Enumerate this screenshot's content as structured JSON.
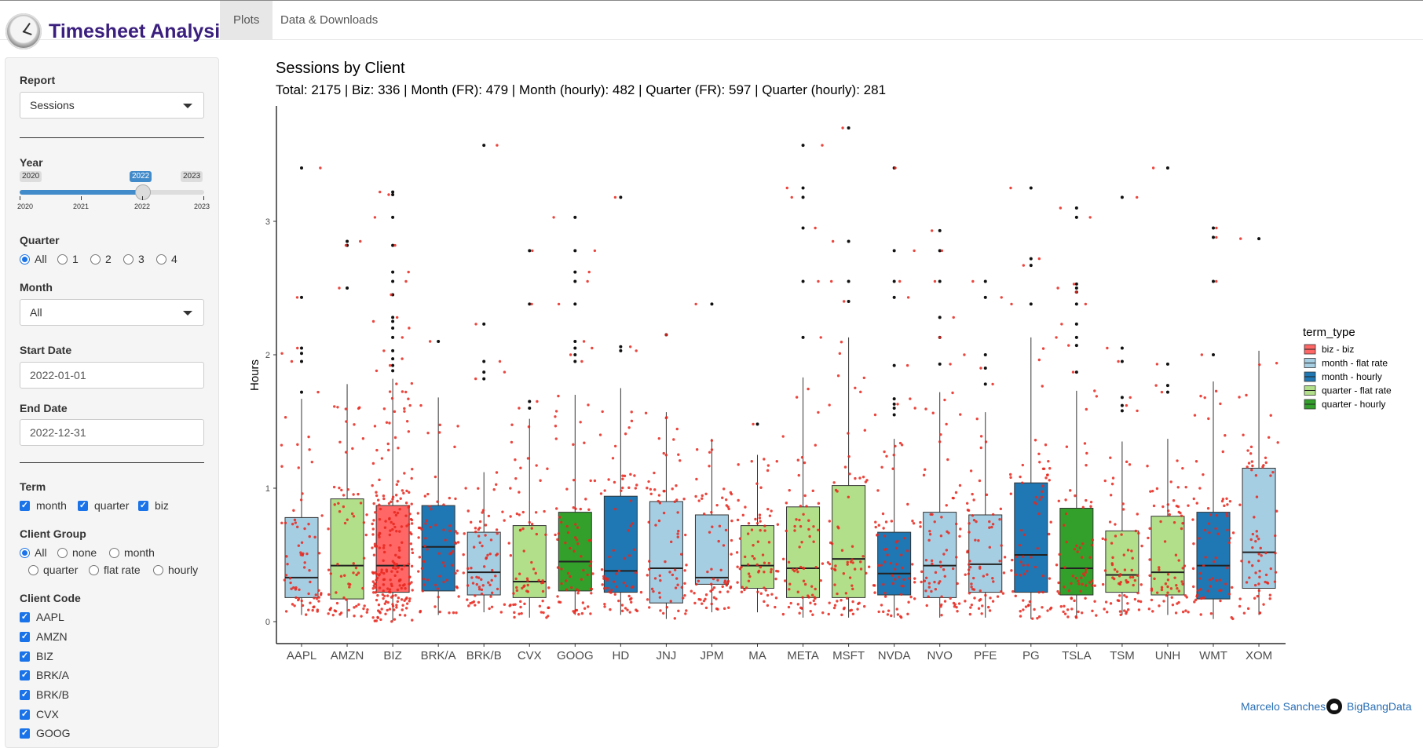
{
  "app": {
    "title": "Timesheet Analysis",
    "tabs": [
      {
        "label": "Plots",
        "active": true
      },
      {
        "label": "Data & Downloads",
        "active": false
      }
    ]
  },
  "sidebar": {
    "report": {
      "label": "Report",
      "value": "Sessions"
    },
    "year": {
      "label": "Year",
      "min": "2020",
      "max": "2023",
      "value": "2022",
      "value_fraction": 0.6667,
      "ticks": [
        "2020",
        "2021",
        "2022",
        "2023"
      ]
    },
    "quarter": {
      "label": "Quarter",
      "options": [
        "All",
        "1",
        "2",
        "3",
        "4"
      ],
      "selected": "All"
    },
    "month": {
      "label": "Month",
      "value": "All"
    },
    "start_date": {
      "label": "Start Date",
      "value": "2022-01-01"
    },
    "end_date": {
      "label": "End Date",
      "value": "2022-12-31"
    },
    "term": {
      "label": "Term",
      "options": [
        {
          "label": "month",
          "checked": true
        },
        {
          "label": "quarter",
          "checked": true
        },
        {
          "label": "biz",
          "checked": true
        }
      ]
    },
    "client_group": {
      "label": "Client Group",
      "options": [
        "All",
        "none",
        "month",
        "quarter",
        "flat rate",
        "hourly"
      ],
      "selected": "All"
    },
    "client_code": {
      "label": "Client Code",
      "options": [
        {
          "label": "AAPL",
          "checked": true
        },
        {
          "label": "AMZN",
          "checked": true
        },
        {
          "label": "BIZ",
          "checked": true
        },
        {
          "label": "BRK/A",
          "checked": true
        },
        {
          "label": "BRK/B",
          "checked": true
        },
        {
          "label": "CVX",
          "checked": true
        },
        {
          "label": "GOOG",
          "checked": true
        }
      ]
    }
  },
  "chart": {
    "title": "Sessions by Client",
    "subtitle": "Total: 2175 | Biz: 336 | Month (FR): 479 | Month (hourly): 482 | Quarter (FR): 597 | Quarter (hourly): 281"
  },
  "footer": {
    "author": "Marcelo Sanches",
    "org": "BigBangData"
  },
  "chart_data": {
    "type": "box",
    "title": "",
    "xlabel": "",
    "ylabel": "Hours",
    "ylim": [
      0,
      3.75
    ],
    "yticks": [
      0,
      1,
      2,
      3
    ],
    "legend": {
      "title": "term_type",
      "position": "right"
    },
    "legend_items": [
      {
        "name": "biz - biz",
        "color": "#ff6666"
      },
      {
        "name": "month - flat rate",
        "color": "#a6cee3"
      },
      {
        "name": "month - hourly",
        "color": "#1f78b4"
      },
      {
        "name": "quarter - flat rate",
        "color": "#b2df8a"
      },
      {
        "name": "quarter - hourly",
        "color": "#33a02c"
      }
    ],
    "jitter_color": "#e8261c",
    "categories": [
      "AAPL",
      "AMZN",
      "BIZ",
      "BRK/A",
      "BRK/B",
      "CVX",
      "GOOG",
      "HD",
      "JNJ",
      "JPM",
      "MA",
      "META",
      "MSFT",
      "NVDA",
      "NVO",
      "PFE",
      "PG",
      "TSLA",
      "TSM",
      "UNH",
      "WMT",
      "XOM"
    ],
    "boxes": [
      {
        "client": "AAPL",
        "term_type": "month - flat rate",
        "q1": 0.18,
        "median": 0.33,
        "q3": 0.78,
        "whisker_low": 0.05,
        "whisker_high": 1.67,
        "outliers": [
          1.72,
          1.95,
          2.01,
          2.05,
          2.43,
          3.4
        ]
      },
      {
        "client": "AMZN",
        "term_type": "quarter - flat rate",
        "q1": 0.17,
        "median": 0.42,
        "q3": 0.92,
        "whisker_low": 0.03,
        "whisker_high": 1.78,
        "outliers": [
          2.5,
          2.82,
          2.85
        ]
      },
      {
        "client": "BIZ",
        "term_type": "biz - biz",
        "q1": 0.22,
        "median": 0.42,
        "q3": 0.87,
        "whisker_low": 0.0,
        "whisker_high": 1.82,
        "outliers": [
          1.88,
          1.92,
          1.97,
          2.03,
          2.13,
          2.2,
          2.25,
          2.28,
          2.45,
          2.55,
          2.62,
          2.82,
          3.03,
          3.2,
          3.22
        ]
      },
      {
        "client": "BRK/A",
        "term_type": "month - hourly",
        "q1": 0.23,
        "median": 0.56,
        "q3": 0.87,
        "whisker_low": 0.05,
        "whisker_high": 1.68,
        "outliers": [
          2.1
        ]
      },
      {
        "client": "BRK/B",
        "term_type": "month - flat rate",
        "q1": 0.2,
        "median": 0.37,
        "q3": 0.67,
        "whisker_low": 0.07,
        "whisker_high": 1.12,
        "outliers": [
          1.82,
          1.87,
          1.95,
          2.23,
          3.57
        ]
      },
      {
        "client": "CVX",
        "term_type": "quarter - flat rate",
        "q1": 0.18,
        "median": 0.3,
        "q3": 0.72,
        "whisker_low": 0.03,
        "whisker_high": 1.52,
        "outliers": [
          1.6,
          1.65,
          2.38,
          2.78
        ]
      },
      {
        "client": "GOOG",
        "term_type": "quarter - hourly",
        "q1": 0.23,
        "median": 0.45,
        "q3": 0.82,
        "whisker_low": 0.05,
        "whisker_high": 1.7,
        "outliers": [
          1.95,
          2.0,
          2.05,
          2.1,
          2.38,
          2.55,
          2.62,
          2.78,
          3.03
        ]
      },
      {
        "client": "HD",
        "term_type": "month - hourly",
        "q1": 0.22,
        "median": 0.38,
        "q3": 0.94,
        "whisker_low": 0.05,
        "whisker_high": 1.75,
        "outliers": [
          2.03,
          2.06,
          3.18
        ]
      },
      {
        "client": "JNJ",
        "term_type": "month - flat rate",
        "q1": 0.14,
        "median": 0.4,
        "q3": 0.9,
        "whisker_low": 0.02,
        "whisker_high": 1.57,
        "outliers": [
          2.15
        ]
      },
      {
        "client": "JPM",
        "term_type": "month - flat rate",
        "q1": 0.28,
        "median": 0.33,
        "q3": 0.8,
        "whisker_low": 0.07,
        "whisker_high": 1.37,
        "outliers": [
          2.38
        ]
      },
      {
        "client": "MA",
        "term_type": "quarter - flat rate",
        "q1": 0.25,
        "median": 0.42,
        "q3": 0.72,
        "whisker_low": 0.07,
        "whisker_high": 1.25,
        "outliers": [
          1.48
        ]
      },
      {
        "client": "META",
        "term_type": "quarter - flat rate",
        "q1": 0.18,
        "median": 0.4,
        "q3": 0.86,
        "whisker_low": 0.03,
        "whisker_high": 1.83,
        "outliers": [
          2.13,
          2.55,
          2.95,
          3.18,
          3.25,
          3.57
        ]
      },
      {
        "client": "MSFT",
        "term_type": "quarter - flat rate",
        "q1": 0.18,
        "median": 0.47,
        "q3": 1.02,
        "whisker_low": 0.03,
        "whisker_high": 2.13,
        "outliers": [
          2.4,
          2.55,
          2.85,
          3.7
        ]
      },
      {
        "client": "NVDA",
        "term_type": "month - hourly",
        "q1": 0.2,
        "median": 0.36,
        "q3": 0.67,
        "whisker_low": 0.03,
        "whisker_high": 1.37,
        "outliers": [
          1.55,
          1.6,
          1.63,
          1.67,
          1.92,
          2.43,
          2.55,
          2.78,
          3.4
        ]
      },
      {
        "client": "NVO",
        "term_type": "month - flat rate",
        "q1": 0.18,
        "median": 0.42,
        "q3": 0.82,
        "whisker_low": 0.03,
        "whisker_high": 1.72,
        "outliers": [
          1.93,
          2.13,
          2.28,
          2.55,
          2.78,
          2.93
        ]
      },
      {
        "client": "PFE",
        "term_type": "month - flat rate",
        "q1": 0.22,
        "median": 0.43,
        "q3": 0.8,
        "whisker_low": 0.03,
        "whisker_high": 1.57,
        "outliers": [
          1.78,
          1.9,
          2.0,
          2.43,
          2.55
        ]
      },
      {
        "client": "PG",
        "term_type": "month - hourly",
        "q1": 0.22,
        "median": 0.5,
        "q3": 1.04,
        "whisker_low": 0.02,
        "whisker_high": 2.13,
        "outliers": [
          2.38,
          2.67,
          2.72,
          3.25
        ]
      },
      {
        "client": "TSLA",
        "term_type": "quarter - hourly",
        "q1": 0.2,
        "median": 0.4,
        "q3": 0.85,
        "whisker_low": 0.03,
        "whisker_high": 1.73,
        "outliers": [
          1.87,
          2.07,
          2.13,
          2.23,
          2.38,
          2.47,
          2.5,
          2.53,
          3.03,
          3.1
        ]
      },
      {
        "client": "TSM",
        "term_type": "quarter - flat rate",
        "q1": 0.22,
        "median": 0.35,
        "q3": 0.68,
        "whisker_low": 0.05,
        "whisker_high": 1.35,
        "outliers": [
          1.58,
          1.62,
          1.68,
          1.95,
          2.05,
          3.18
        ]
      },
      {
        "client": "UNH",
        "term_type": "quarter - flat rate",
        "q1": 0.2,
        "median": 0.37,
        "q3": 0.79,
        "whisker_low": 0.05,
        "whisker_high": 1.37,
        "outliers": [
          1.72,
          1.77,
          1.93,
          3.4
        ]
      },
      {
        "client": "WMT",
        "term_type": "month - hourly",
        "q1": 0.17,
        "median": 0.42,
        "q3": 0.82,
        "whisker_low": 0.02,
        "whisker_high": 1.8,
        "outliers": [
          2.0,
          2.55,
          2.88,
          2.95
        ]
      },
      {
        "client": "XOM",
        "term_type": "month - flat rate",
        "q1": 0.25,
        "median": 0.52,
        "q3": 1.15,
        "whisker_low": 0.05,
        "whisker_high": 2.03,
        "outliers": [
          2.87
        ]
      }
    ]
  }
}
